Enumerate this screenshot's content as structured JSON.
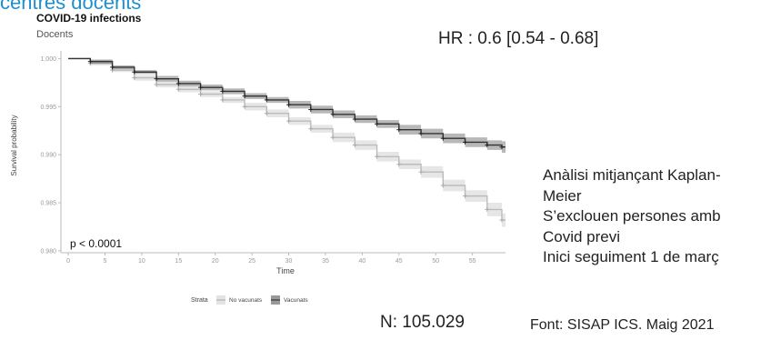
{
  "slide": {
    "header_fragment": "centres docents",
    "hr_text": "HR : 0.6 [0.54 - 0.68]",
    "n_text": "N: 105.029",
    "source_text": "Font: SISAP ICS. Maig 2021",
    "notes": [
      "Anàlisi mitjançant  Kaplan-",
      "Meier",
      "S’exclouen persones amb",
      "Covid previ",
      "Inici seguiment 1 de març"
    ]
  },
  "chart_data": {
    "type": "line",
    "title": "COVID-19 infections",
    "subtitle": "Docents",
    "xlabel": "Time",
    "ylabel": "Survival probability",
    "xlim": [
      -1,
      59.5
    ],
    "ylim": [
      0.9798,
      1.0008
    ],
    "xticks": [
      0,
      5,
      10,
      15,
      20,
      25,
      30,
      35,
      40,
      45,
      50,
      55
    ],
    "xtick_labels": [
      "0",
      "5",
      "10",
      "15",
      "20",
      "25",
      "30",
      "35",
      "40",
      "45",
      "50",
      "55"
    ],
    "yticks": [
      0.98,
      0.985,
      0.99,
      0.995,
      1.0
    ],
    "ytick_labels": [
      "0.980",
      "0.985",
      "0.990",
      "0.995",
      "1.000"
    ],
    "annotation": "p < 0.0001",
    "legend_title": "Strata",
    "legend_position": "bottom",
    "grid": false,
    "series": [
      {
        "name": "No vacunats",
        "color": "#c8c8c8",
        "x": [
          0,
          3,
          6,
          9,
          12,
          15,
          18,
          21,
          24,
          27,
          30,
          33,
          36,
          39,
          42,
          45,
          48,
          51,
          54,
          57,
          59
        ],
        "y": [
          1.0,
          0.9995,
          0.9988,
          0.998,
          0.9973,
          0.9968,
          0.9963,
          0.9957,
          0.995,
          0.9943,
          0.9935,
          0.9927,
          0.9918,
          0.991,
          0.9898,
          0.989,
          0.9882,
          0.9868,
          0.9857,
          0.9843,
          0.9832
        ],
        "ci_half_width": [
          0.0,
          0.0002,
          0.0002,
          0.0003,
          0.0003,
          0.0003,
          0.0003,
          0.0003,
          0.0004,
          0.0004,
          0.0004,
          0.0004,
          0.0005,
          0.0005,
          0.0005,
          0.0005,
          0.0006,
          0.0006,
          0.0006,
          0.0007,
          0.0007
        ]
      },
      {
        "name": "Vacunats",
        "color": "#333333",
        "x": [
          0,
          3,
          6,
          9,
          12,
          15,
          18,
          21,
          24,
          27,
          30,
          33,
          36,
          39,
          42,
          45,
          48,
          51,
          54,
          57,
          59
        ],
        "y": [
          1.0,
          0.9997,
          0.9991,
          0.9986,
          0.9979,
          0.9974,
          0.997,
          0.9966,
          0.9961,
          0.9957,
          0.9952,
          0.9947,
          0.9942,
          0.9937,
          0.9932,
          0.9926,
          0.9922,
          0.9917,
          0.9913,
          0.991,
          0.9908
        ],
        "ci_half_width": [
          0.0,
          0.0002,
          0.0002,
          0.0002,
          0.0003,
          0.0003,
          0.0003,
          0.0003,
          0.0003,
          0.0003,
          0.0004,
          0.0004,
          0.0004,
          0.0004,
          0.0004,
          0.0005,
          0.0005,
          0.0005,
          0.0005,
          0.0005,
          0.0006
        ]
      }
    ]
  }
}
